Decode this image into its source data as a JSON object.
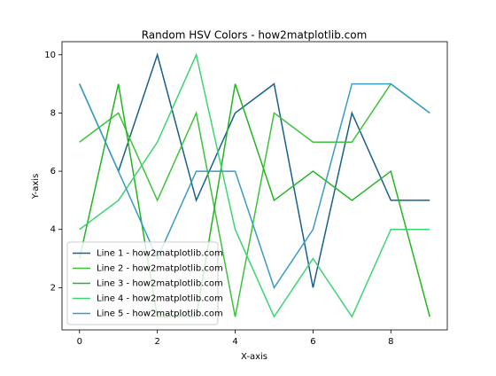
{
  "chart_data": {
    "type": "line",
    "title": "Random HSV Colors - how2matplotlib.com",
    "xlabel": "X-axis",
    "ylabel": "Y-axis",
    "x": [
      0,
      1,
      2,
      3,
      4,
      5,
      6,
      7,
      8,
      9
    ],
    "series": [
      {
        "name": "Line 1 - how2matplotlib.com",
        "color": "#17608a",
        "values": [
          9,
          6,
          10,
          5,
          8,
          9,
          2,
          8,
          5,
          5
        ]
      },
      {
        "name": "Line 2 - how2matplotlib.com",
        "color": "#3ec23e",
        "values": [
          7,
          8,
          5,
          8,
          1,
          8,
          7,
          7,
          9,
          8
        ]
      },
      {
        "name": "Line 3 - how2matplotlib.com",
        "color": "#22b522",
        "values": [
          3,
          9,
          1,
          1,
          9,
          5,
          6,
          5,
          6,
          1
        ]
      },
      {
        "name": "Line 4 - how2matplotlib.com",
        "color": "#3dd572",
        "values": [
          4,
          5,
          7,
          10,
          4,
          1,
          3,
          1,
          4,
          4
        ]
      },
      {
        "name": "Line 5 - how2matplotlib.com",
        "color": "#3a9cc4",
        "values": [
          9,
          6,
          3,
          6,
          6,
          2,
          4,
          9,
          9,
          8
        ]
      }
    ],
    "xlim": [
      -0.45,
      9.45
    ],
    "ylim": [
      0.55,
      10.45
    ],
    "xticks": [
      0,
      2,
      4,
      6,
      8
    ],
    "yticks": [
      2,
      4,
      6,
      8,
      10
    ],
    "grid": false,
    "legend": "lower left"
  }
}
